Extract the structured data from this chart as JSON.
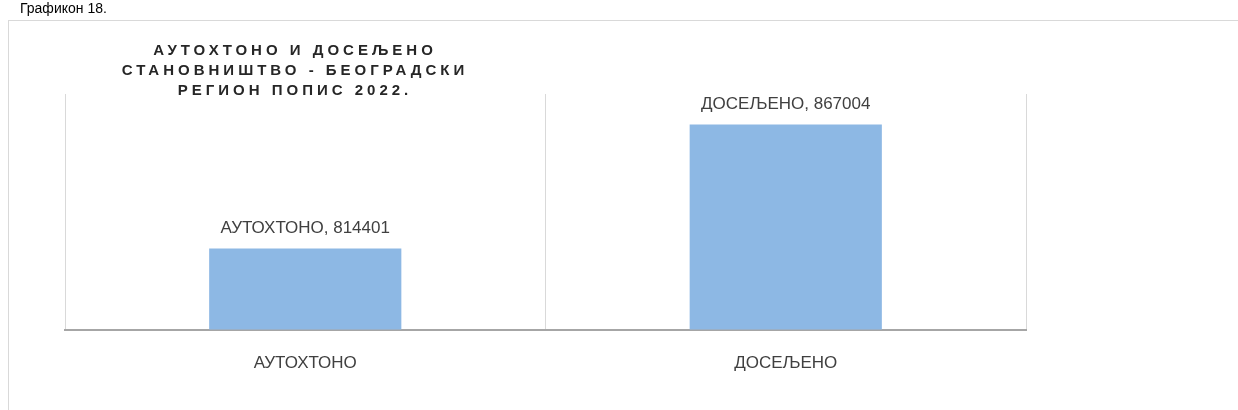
{
  "chart_data": {
    "type": "bar",
    "title": "АУТОХТОНО И ДОСЕЉЕНО СТАНОВНИШТВО - БЕОГРАДСКИ РЕГИОН ПОПИС 2022.",
    "annotations": [
      "Графикон 18."
    ],
    "categories": [
      "АУТОХТОНО",
      "ДОСЕЉЕНО"
    ],
    "values": [
      814401,
      867004
    ],
    "value_labels": [
      "АУТОХТОНО, 814401",
      "ДОСЕЉЕНО, 867004"
    ],
    "color": "#8db8e4",
    "ylim": [
      780000,
      880000
    ],
    "grid": "x",
    "tick_labels": "x",
    "legend": false
  }
}
